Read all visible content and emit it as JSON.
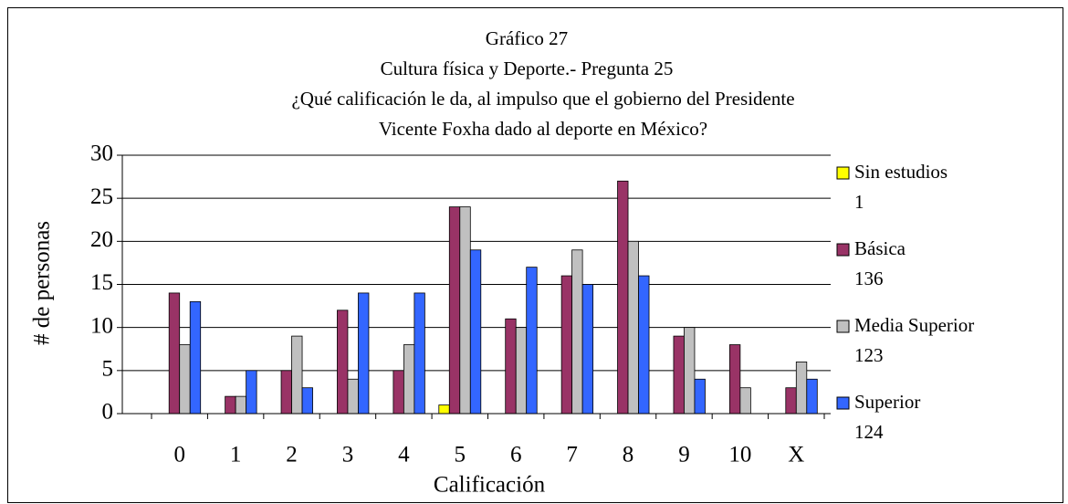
{
  "chart_data": {
    "type": "bar",
    "title": "Gráfico 27",
    "subtitle": "Cultura física y Deporte.- Pregunta 25",
    "question": [
      "¿Qué calificación le da, al impulso que el gobierno del Presidente",
      "Vicente Foxha dado al deporte en México?"
    ],
    "x_label": "Calificación",
    "y_label": "# de personas",
    "categories": [
      "0",
      "1",
      "2",
      "3",
      "4",
      "5",
      "6",
      "7",
      "8",
      "9",
      "10",
      "X"
    ],
    "series": [
      {
        "name": "Sin estudios",
        "total": 1,
        "color": "#ffff00",
        "values": [
          0,
          0,
          0,
          0,
          0,
          1,
          0,
          0,
          0,
          0,
          0,
          0
        ]
      },
      {
        "name": "Básica",
        "total": 136,
        "color": "#993366",
        "values": [
          14,
          2,
          5,
          12,
          5,
          24,
          11,
          16,
          27,
          9,
          8,
          3
        ]
      },
      {
        "name": "Media Superior",
        "total": 123,
        "color": "#c0c0c0",
        "values": [
          8,
          2,
          9,
          4,
          8,
          24,
          10,
          19,
          20,
          10,
          3,
          6
        ]
      },
      {
        "name": "Superior",
        "total": 124,
        "color": "#3366ff",
        "values": [
          13,
          5,
          3,
          14,
          14,
          19,
          17,
          15,
          16,
          4,
          0,
          4
        ]
      }
    ],
    "ylim": [
      0,
      30
    ],
    "yticks": [
      0,
      5,
      10,
      15,
      20,
      25,
      30
    ],
    "grid": true,
    "legend": "right"
  }
}
